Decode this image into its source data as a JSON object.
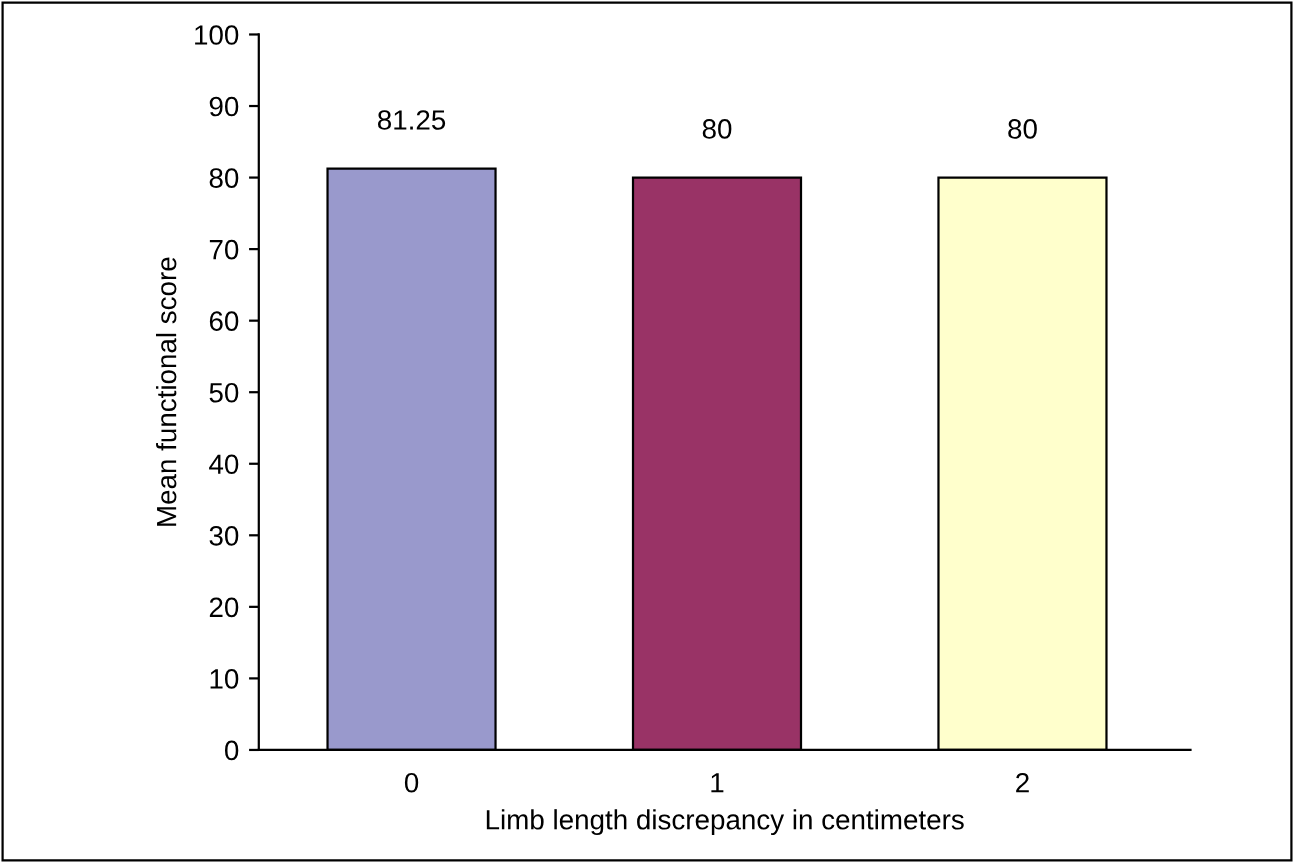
{
  "chart_data": {
    "type": "bar",
    "categories": [
      "0",
      "1",
      "2"
    ],
    "values": [
      81.25,
      80,
      80
    ],
    "colors": [
      "#9999cc",
      "#993366",
      "#ffffcc"
    ],
    "xlabel": "Limb length discrepancy in centimeters",
    "ylabel": "Mean functional score",
    "ylim": [
      0,
      100
    ],
    "yticks": [
      0,
      10,
      20,
      30,
      40,
      50,
      60,
      70,
      80,
      90,
      100
    ],
    "data_labels": true,
    "grid": false,
    "legend": false
  }
}
